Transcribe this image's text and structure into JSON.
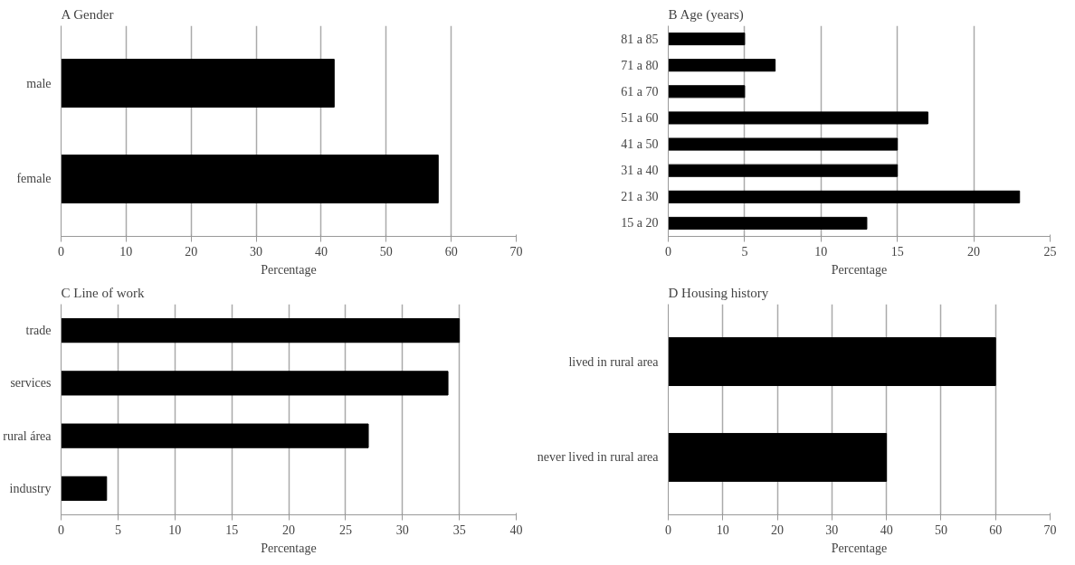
{
  "chart_data": [
    {
      "type": "bar",
      "orientation": "horizontal",
      "title": "A   Gender",
      "xlabel": "Percentage",
      "categories": [
        "male",
        "female"
      ],
      "values": [
        42,
        58
      ],
      "color": "#000000",
      "xlim": [
        0,
        70
      ],
      "xticks": [
        0,
        10,
        20,
        30,
        40,
        50,
        60,
        70
      ],
      "grid": "x"
    },
    {
      "type": "bar",
      "orientation": "horizontal",
      "title": "B   Age (years)",
      "xlabel": "Percentage",
      "categories": [
        "81 a 85",
        "71 a 80",
        "61 a 70",
        "51 a 60",
        "41 a 50",
        "31 a 40",
        "21 a 30",
        "15 a 20"
      ],
      "values": [
        5,
        7,
        5,
        17,
        15,
        15,
        23,
        13
      ],
      "color": "#000000",
      "xlim": [
        0,
        25
      ],
      "xticks": [
        0,
        5,
        10,
        15,
        20,
        25
      ],
      "grid": "x"
    },
    {
      "type": "bar",
      "orientation": "horizontal",
      "title": "C   Line of work",
      "xlabel": "Percentage",
      "categories": [
        "trade",
        "services",
        "rural área",
        "industry"
      ],
      "values": [
        35,
        34,
        27,
        4
      ],
      "color": "#000000",
      "xlim": [
        0,
        40
      ],
      "xticks": [
        0,
        5,
        10,
        15,
        20,
        25,
        30,
        35,
        40
      ],
      "grid": "x"
    },
    {
      "type": "bar",
      "orientation": "horizontal",
      "title": "D   Housing history",
      "xlabel": "Percentage",
      "categories": [
        "lived in rural area",
        "never lived in rural area"
      ],
      "values": [
        60,
        40
      ],
      "color": "#000000",
      "xlim": [
        0,
        70
      ],
      "xticks": [
        0,
        10,
        20,
        30,
        40,
        50,
        60,
        70
      ],
      "grid": "x"
    }
  ]
}
